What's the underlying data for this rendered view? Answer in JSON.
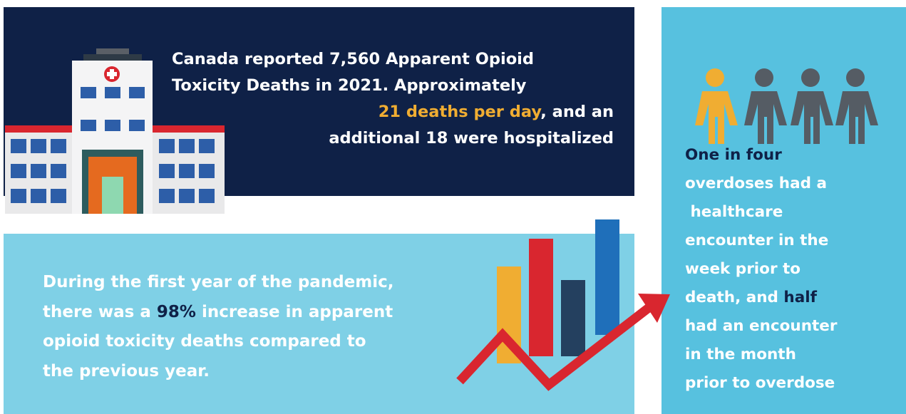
{
  "panels": [
    {
      "lines": [
        [
          {
            "text": "Canada reported 7,560 Apparent Opioid",
            "color": "#ffffff"
          }
        ],
        [
          {
            "text": "Toxicity Deaths in 2021. Approximately",
            "color": "#ffffff"
          }
        ],
        [
          {
            "text": "21 deaths per day",
            "color": "#f0ad32"
          },
          {
            "text": ", and an",
            "color": "#ffffff"
          }
        ],
        [
          {
            "text": "additional 18 were hospitalized",
            "color": "#ffffff"
          }
        ]
      ]
    },
    {
      "lines": [
        [
          {
            "text": "During the first year of the pandemic,",
            "color": "#ffffff"
          }
        ],
        [
          {
            "text": "there was a ",
            "color": "#ffffff"
          },
          {
            "text": "98%",
            "color": "#0f2147"
          },
          {
            "text": " increase in apparent",
            "color": "#ffffff"
          }
        ],
        [
          {
            "text": "opioid toxicity deaths compared to",
            "color": "#ffffff"
          }
        ],
        [
          {
            "text": "the previous year.",
            "color": "#ffffff"
          }
        ]
      ]
    },
    {
      "lines": [
        [
          {
            "text": "One in four",
            "color": "#0f2147"
          }
        ],
        [
          {
            "text": "overdoses had a",
            "color": "#ffffff"
          }
        ],
        [
          {
            "text": " healthcare",
            "color": "#ffffff"
          }
        ],
        [
          {
            "text": "encounter in the",
            "color": "#ffffff"
          }
        ],
        [
          {
            "text": "week prior to",
            "color": "#ffffff"
          }
        ],
        [
          {
            "text": "death, and ",
            "color": "#ffffff"
          },
          {
            "text": "half",
            "color": "#0f2147"
          }
        ],
        [
          {
            "text": "had an encounter",
            "color": "#ffffff"
          }
        ],
        [
          {
            "text": "in the month",
            "color": "#ffffff"
          }
        ],
        [
          {
            "text": "prior to overdose",
            "color": "#ffffff"
          }
        ]
      ]
    }
  ]
}
